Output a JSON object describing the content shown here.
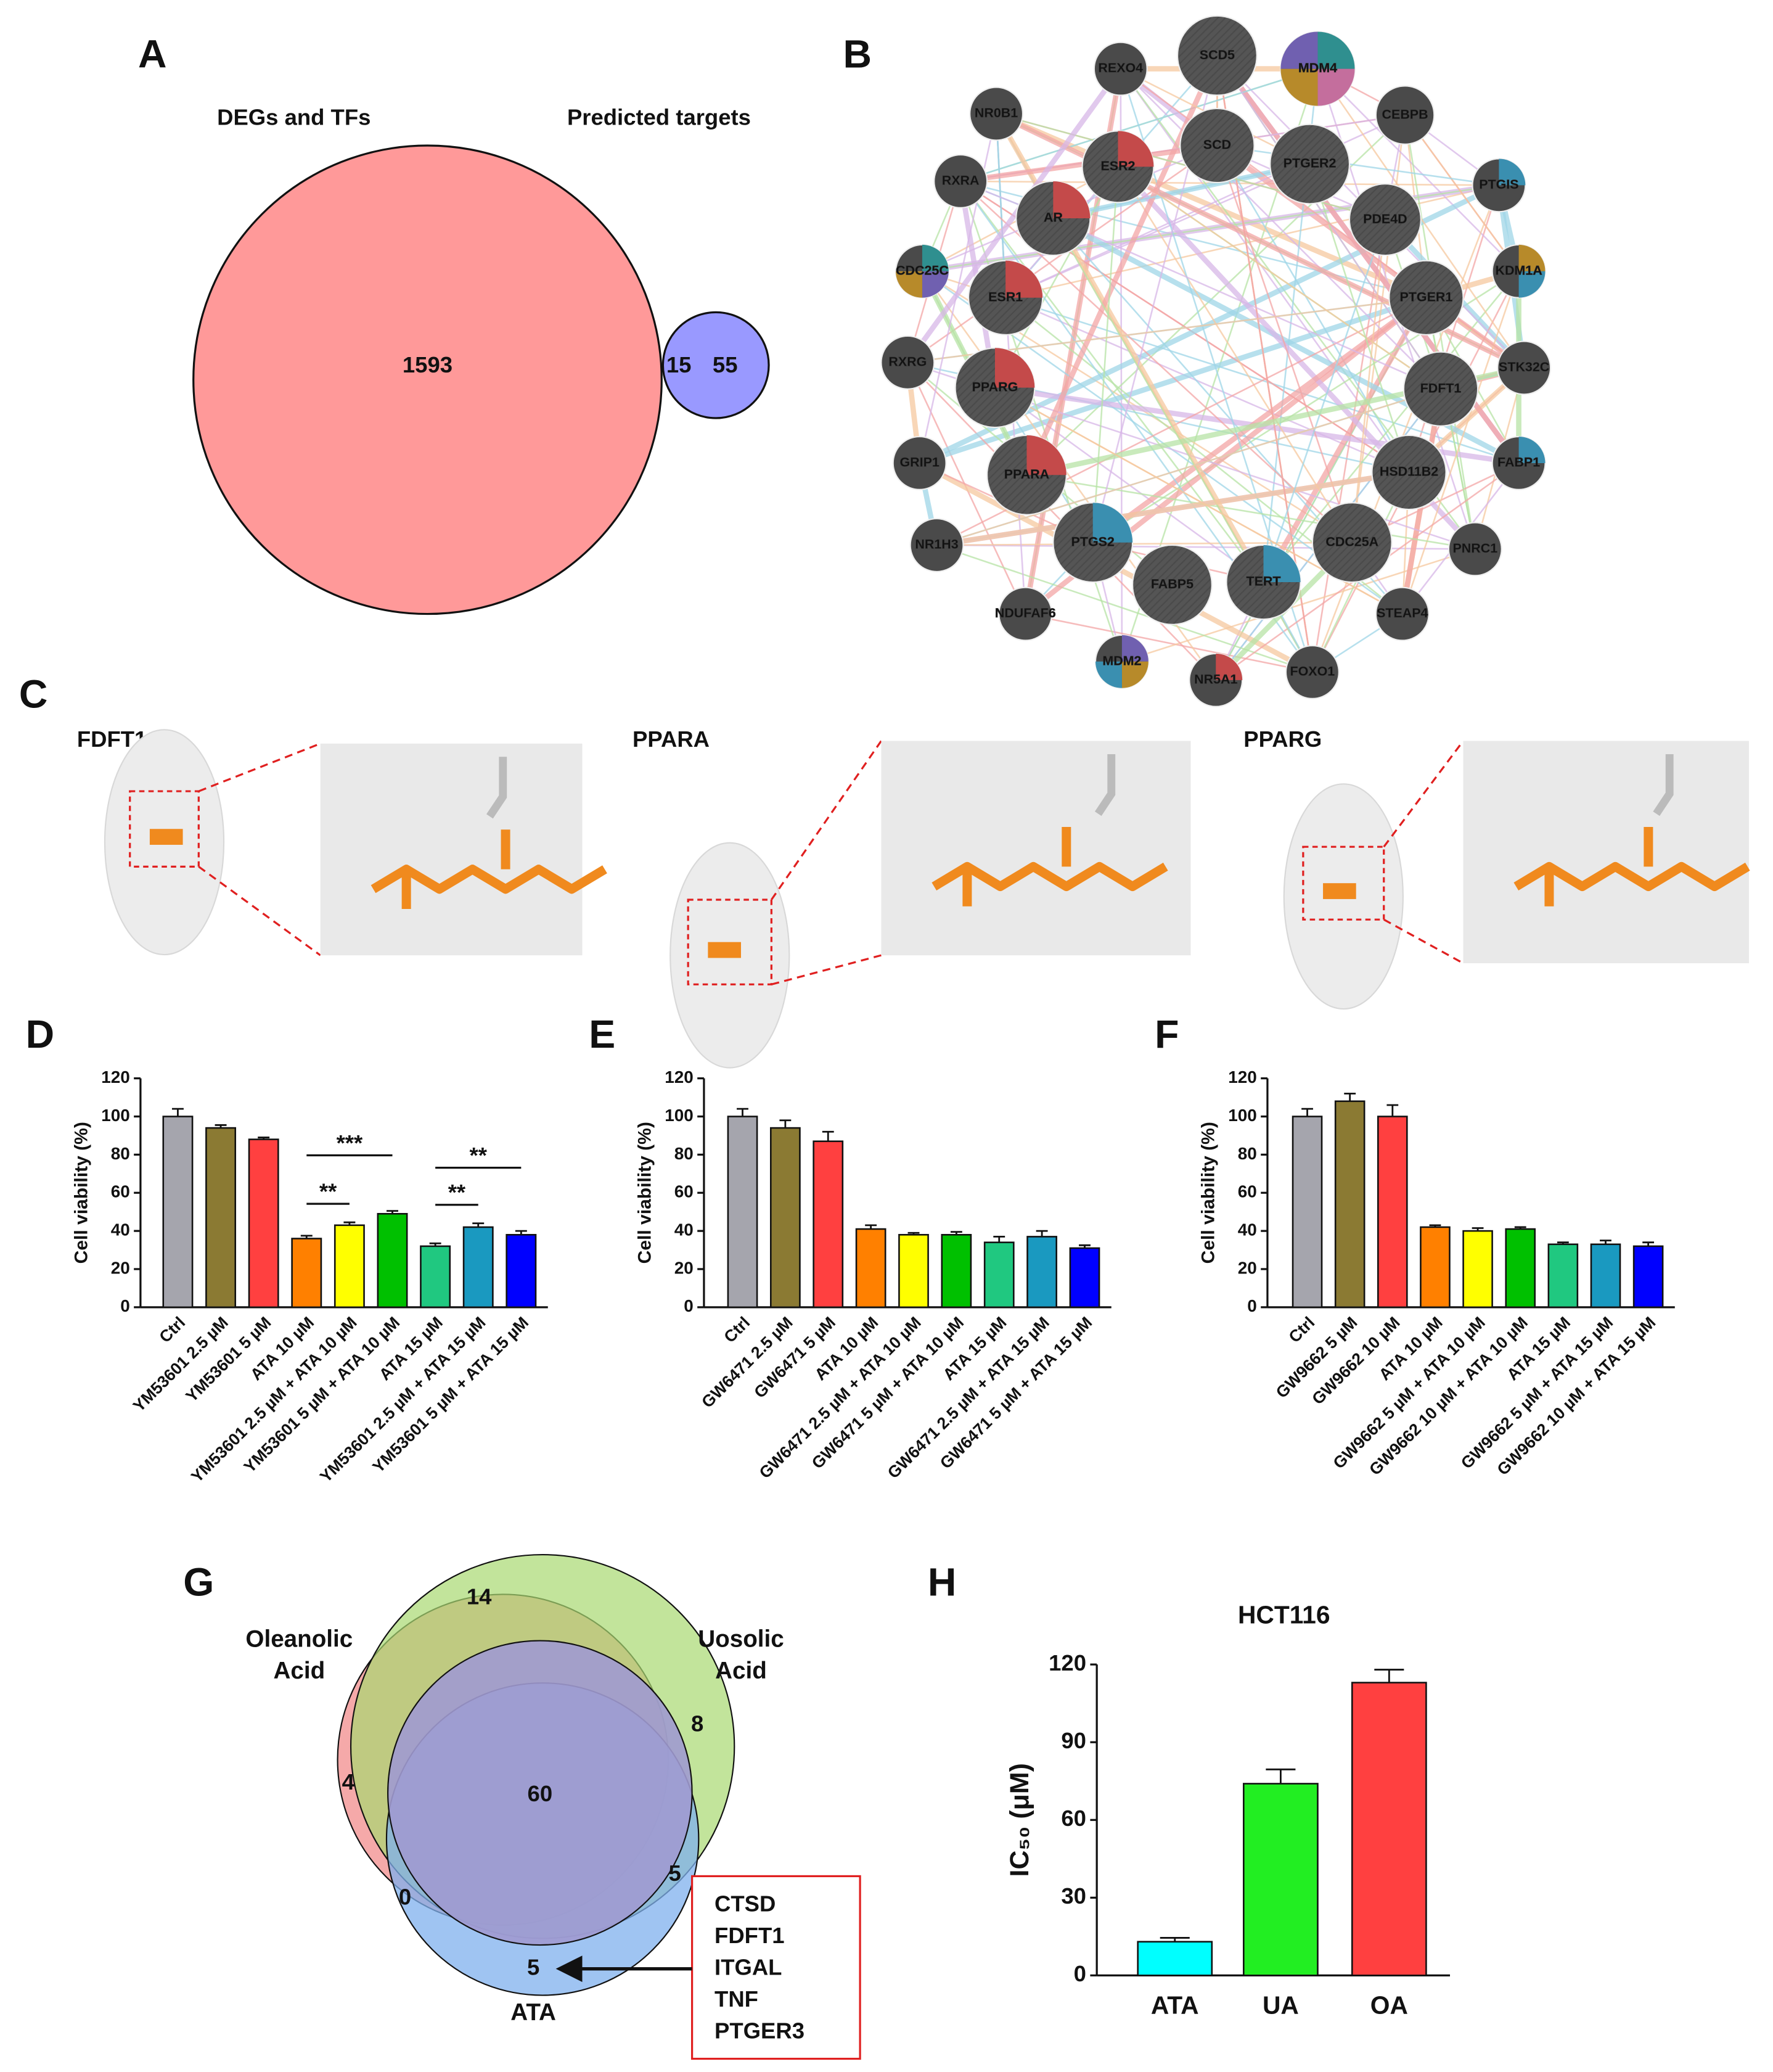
{
  "network": {
    "panel_label": "B",
    "nodes": [
      "SCD5",
      "MDM4",
      "REXO4",
      "NR0B1",
      "CEBPB",
      "SCD",
      "PTGER2",
      "ESR2",
      "RXRA",
      "PTGIS",
      "AR",
      "PDE4D",
      "CDC25C",
      "KDM1A",
      "ESR1",
      "PTGER1",
      "RXRG",
      "STK32C",
      "PPARG",
      "FDFT1",
      "GRIP1",
      "FABP1",
      "PPARA",
      "HSD11B2",
      "NR1H3",
      "PNRC1",
      "PTGS2",
      "CDC25A",
      "FABP5",
      "TERT",
      "NDUFAF6",
      "STEAP4",
      "MDM2",
      "FOXO1",
      "NR5A1"
    ]
  },
  "docking": {
    "panel_label": "C",
    "targets": [
      "FDFT1",
      "PPARA",
      "PPARG"
    ]
  },
  "chart_data": [
    {
      "type": "venn",
      "panel_label": "A",
      "sets": [
        "DEGs and TFs",
        "Predicted targets"
      ],
      "values": [
        1593,
        15,
        55
      ],
      "colors": [
        "#ff9999",
        "#9999ff",
        "#ff88ff"
      ]
    },
    {
      "type": "bar",
      "panel_label": "D",
      "ylabel": "Cell viability (%)",
      "categories": [
        "Ctrl",
        "YM53601 2.5 µM",
        "YM53601 5 µM",
        "ATA 10 µM",
        "YM53601 2.5 µM + ATA 10 µM",
        "YM53601 5 µM + ATA 10 µM",
        "ATA 15 µM",
        "YM53601 2.5 µM + ATA 15 µM",
        "YM53601 5 µM + ATA 15 µM"
      ],
      "values": [
        100,
        94,
        88,
        36,
        43,
        49,
        32,
        42,
        38
      ],
      "errors": [
        4,
        1.5,
        1,
        1.5,
        1.5,
        1.5,
        1.5,
        2,
        2
      ],
      "colors": [
        "#a5a5ad",
        "#8b7a33",
        "#ff4040",
        "#ff8000",
        "#ffff00",
        "#00c000",
        "#20c880",
        "#1a99c0",
        "#0000ff"
      ],
      "ylim": [
        0,
        120
      ],
      "yticks": [
        0,
        20,
        40,
        60,
        80,
        100,
        120
      ],
      "significance": [
        {
          "from": 3,
          "to": 4,
          "label": "**"
        },
        {
          "from": 3,
          "to": 5,
          "label": "***"
        },
        {
          "from": 6,
          "to": 7,
          "label": "**"
        },
        {
          "from": 6,
          "to": 8,
          "label": "**"
        }
      ]
    },
    {
      "type": "bar",
      "panel_label": "E",
      "ylabel": "Cell viability (%)",
      "categories": [
        "Ctrl",
        "GW6471 2.5 µM",
        "GW6471 5 µM",
        "ATA 10 µM",
        "GW6471 2.5 µM + ATA 10 µM",
        "GW6471 5 µM + ATA 10 µM",
        "ATA 15 µM",
        "GW6471 2.5 µM + ATA 15 µM",
        "GW6471 5 µM + ATA 15 µM"
      ],
      "values": [
        100,
        94,
        87,
        41,
        38,
        38,
        34,
        37,
        31
      ],
      "errors": [
        4,
        4,
        5,
        2,
        1,
        1.5,
        3,
        3,
        1.5
      ],
      "colors": [
        "#a5a5ad",
        "#8b7a33",
        "#ff4040",
        "#ff8000",
        "#ffff00",
        "#00c000",
        "#20c880",
        "#1a99c0",
        "#0000ff"
      ],
      "ylim": [
        0,
        120
      ],
      "yticks": [
        0,
        20,
        40,
        60,
        80,
        100,
        120
      ]
    },
    {
      "type": "bar",
      "panel_label": "F",
      "ylabel": "Cell viability (%)",
      "categories": [
        "Ctrl",
        "GW9662 5 µM",
        "GW9662 10 µM",
        "ATA 10 µM",
        "GW9662 5 µM + ATA 10 µM",
        "GW9662 10 µM + ATA 10 µM",
        "ATA 15 µM",
        "GW9662 5 µM + ATA 15 µM",
        "GW9662 10 µM + ATA 15 µM"
      ],
      "values": [
        100,
        108,
        100,
        42,
        40,
        41,
        33,
        33,
        32
      ],
      "errors": [
        4,
        4,
        6,
        1,
        1.5,
        1,
        1,
        2,
        2
      ],
      "colors": [
        "#a5a5ad",
        "#8b7a33",
        "#ff4040",
        "#ff8000",
        "#ffff00",
        "#00c000",
        "#20c880",
        "#1a99c0",
        "#0000ff"
      ],
      "ylim": [
        0,
        120
      ],
      "yticks": [
        0,
        20,
        40,
        60,
        80,
        100,
        120
      ]
    },
    {
      "type": "venn3",
      "panel_label": "G",
      "sets": [
        [
          "Oleanolic",
          "Acid"
        ],
        [
          "Uosolic",
          "Acid"
        ],
        [
          "ATA"
        ]
      ],
      "values": [
        14,
        8,
        4,
        60,
        0,
        5,
        5
      ],
      "colors": [
        "#f4a0a0",
        "#a8d870",
        "#7fb0ee"
      ],
      "gene_list": [
        "CTSD",
        "FDFT1",
        "ITGAL",
        "TNF",
        "PTGER3"
      ]
    },
    {
      "type": "bar",
      "panel_label": "H",
      "title": "HCT116",
      "ylabel": "IC₅₀ (μM)",
      "categories": [
        "ATA",
        "UA",
        "OA"
      ],
      "values": [
        13,
        74,
        113
      ],
      "errors": [
        1.5,
        5.5,
        5
      ],
      "colors": [
        "#00ffff",
        "#22ee22",
        "#ff4040"
      ],
      "ylim": [
        0,
        120
      ],
      "yticks": [
        0,
        30,
        60,
        90,
        120
      ]
    }
  ]
}
